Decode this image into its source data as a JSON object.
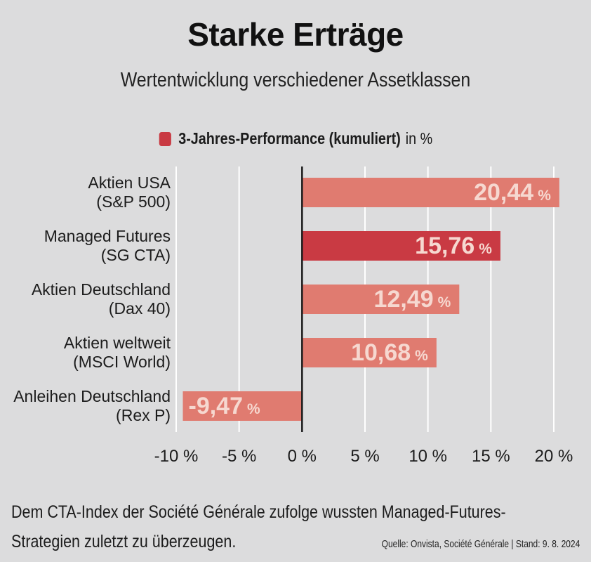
{
  "title": "Starke Erträge",
  "subtitle": "Wertentwicklung verschiedener Assetklassen",
  "legend": {
    "label": "3-Jahres-Performance (kumuliert)",
    "unit": "in %",
    "color": "#c93a43"
  },
  "chart_data": {
    "type": "bar",
    "orientation": "horizontal",
    "categories": [
      [
        "Aktien USA",
        "(S&P 500)"
      ],
      [
        "Managed Futures",
        "(SG CTA)"
      ],
      [
        "Aktien Deutschland",
        "(Dax 40)"
      ],
      [
        "Aktien weltweit",
        "(MSCI World)"
      ],
      [
        "Anleihen Deutschland",
        "(Rex P)"
      ]
    ],
    "series": [
      {
        "name": "3-Jahres-Performance (kumuliert)",
        "values": [
          20.44,
          15.76,
          12.49,
          10.68,
          -9.47
        ],
        "value_labels": [
          "20,44",
          "15,76",
          "12,49",
          "10,68",
          "-9,47"
        ],
        "unit_label": "%"
      }
    ],
    "highlight_index": 1,
    "colors": {
      "bar": "#e07b70",
      "highlight": "#c93a43",
      "value_text": "#f6d8d0",
      "zero_line": "#1a1a1a",
      "grid": "#ffffff"
    },
    "xlim": [
      -10,
      20
    ],
    "xticks": [
      -10,
      -5,
      0,
      5,
      10,
      15,
      20
    ],
    "xtick_labels": [
      "-10 %",
      "-5 %",
      "0 %",
      "5 %",
      "10 %",
      "15 %",
      "20 %"
    ],
    "grid": true,
    "legend_position": "top-center"
  },
  "footer": {
    "text": "Dem CTA-Index der Société Générale zufolge wussten Managed-Futures-Strategien zuletzt zu überzeugen.",
    "source": "Quelle: Onvista, Société Générale | Stand: 9. 8. 2024"
  }
}
